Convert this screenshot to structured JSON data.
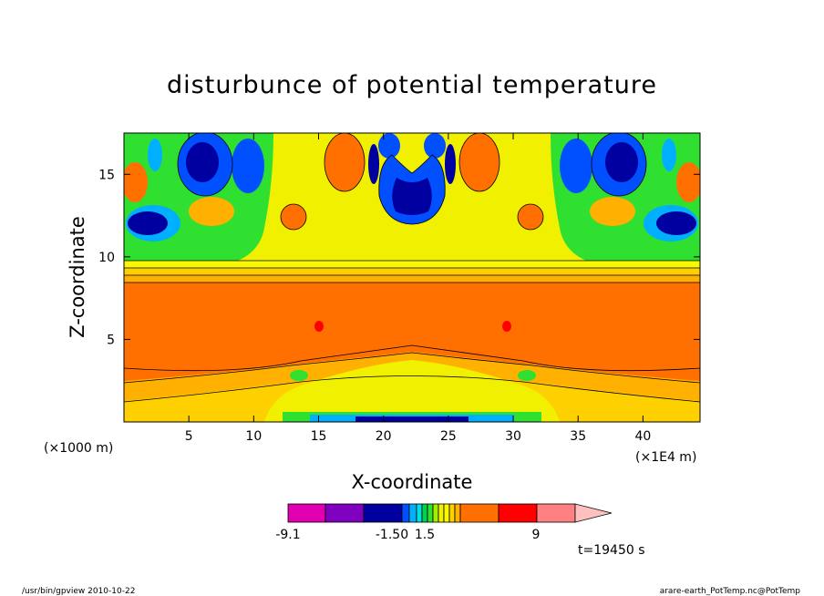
{
  "chart_data": {
    "type": "heatmap",
    "title": "disturbunce of potential temperature",
    "xlabel": "X-coordinate",
    "ylabel": "Z-coordinate",
    "xlim": [
      0,
      44.4
    ],
    "ylim": [
      0,
      17.5
    ],
    "x_ticks": [
      "5",
      "10",
      "15",
      "20",
      "25",
      "30",
      "35",
      "40"
    ],
    "y_ticks": [
      "5",
      "10",
      "15"
    ],
    "x_ticks_values": [
      5,
      10,
      15,
      20,
      25,
      30,
      35,
      40
    ],
    "y_ticks_values": [
      5,
      10,
      15
    ],
    "x_unit_left": "(×1000 m)",
    "x_unit_right": "(×1E4 m)",
    "colorbar": {
      "labels": [
        "-9.1",
        "-1.50",
        "1.5",
        "9"
      ],
      "levels": [
        -9.1,
        -6.1,
        -3.0,
        -1.5,
        -1.2,
        -0.9,
        -0.6,
        -0.3,
        0,
        0.3,
        0.6,
        0.9,
        1.2,
        1.5,
        3.0,
        6.0,
        9.0
      ],
      "colors": [
        "#e000b0",
        "#8000c0",
        "#0000a0",
        "#0050ff",
        "#00b0ff",
        "#00e0e0",
        "#00d050",
        "#30e030",
        "#a0f000",
        "#f0f000",
        "#f8f800",
        "#ffd000",
        "#ffb000",
        "#ff7000",
        "#ff0000",
        "#ff8080",
        "#ffc0c0"
      ]
    },
    "time_label": "t=19450 s"
  },
  "footer": {
    "left": "/usr/bin/gpview   2010-10-22",
    "right": "arare-earth_PotTemp.nc@PotTemp"
  }
}
